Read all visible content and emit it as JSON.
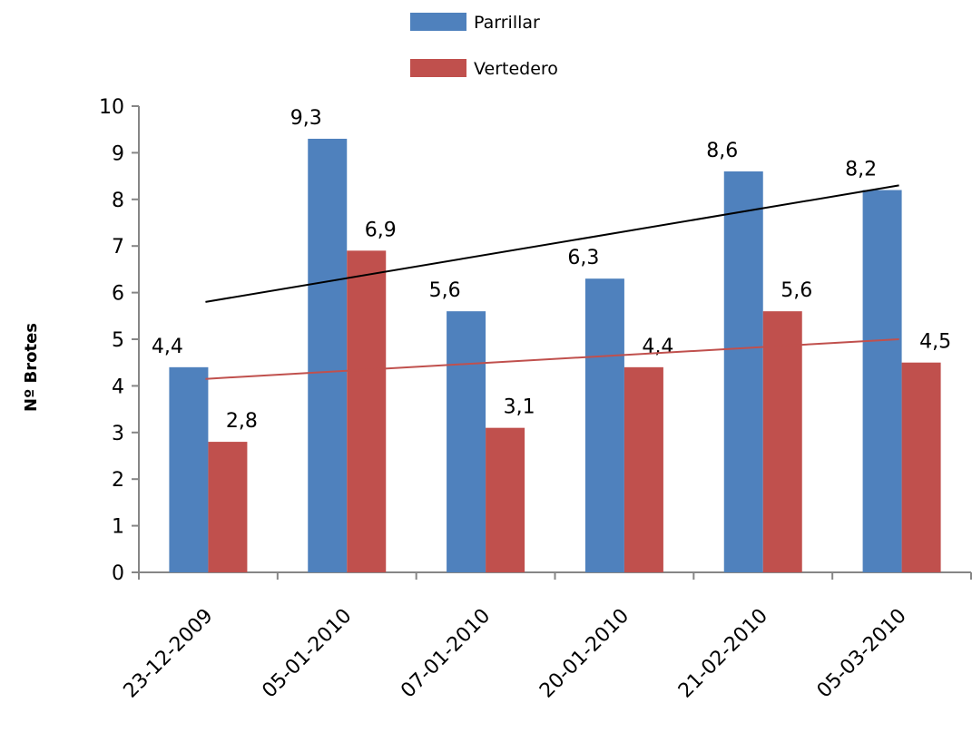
{
  "chart_data": {
    "type": "bar",
    "title": "",
    "xlabel": "",
    "ylabel": "Nº Brotes",
    "ylim": [
      0,
      10
    ],
    "yticks": [
      "0",
      "1",
      "2",
      "3",
      "4",
      "5",
      "6",
      "7",
      "8",
      "9",
      "10"
    ],
    "categories": [
      "23-12-2009",
      "05-01-2010",
      "07-01-2010",
      "20-01-2010",
      "21-02-2010",
      "05-03-2010"
    ],
    "series": [
      {
        "name": "Parrillar",
        "color": "#4F81BD",
        "values": [
          4.4,
          9.3,
          5.6,
          6.3,
          8.6,
          8.2
        ],
        "labels": [
          "4,4",
          "9,3",
          "5,6",
          "6,3",
          "8,6",
          "8,2"
        ],
        "trendline": {
          "color": "#000000",
          "start": 5.8,
          "end": 8.3
        }
      },
      {
        "name": "Vertedero",
        "color": "#C0504D",
        "values": [
          2.8,
          6.9,
          3.1,
          4.4,
          5.6,
          4.5
        ],
        "labels": [
          "2,8",
          "6,9",
          "3,1",
          "4,4",
          "5,6",
          "4,5"
        ],
        "trendline": {
          "color": "#C0504D",
          "start": 4.15,
          "end": 5.0
        }
      }
    ],
    "grid": false,
    "legend": "top"
  }
}
